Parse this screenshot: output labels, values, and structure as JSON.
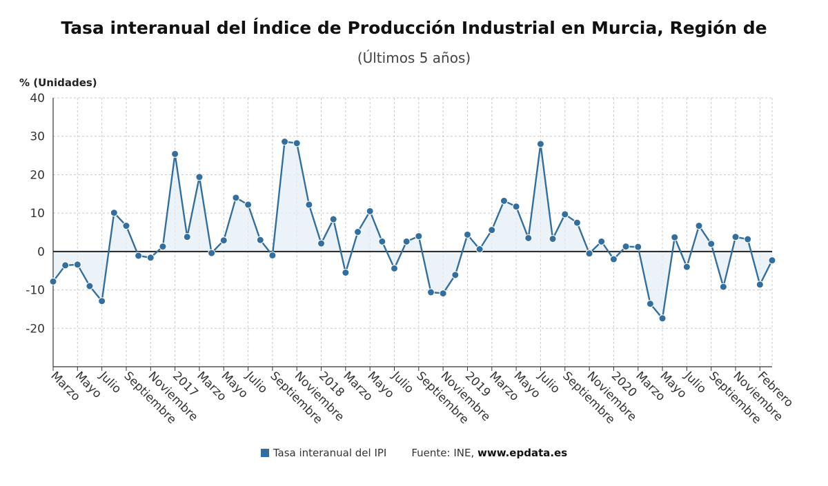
{
  "chart_data": {
    "type": "line",
    "title": "Tasa interanual del Índice de Producción Industrial en Murcia, Región de",
    "subtitle": "(Últimos 5 años)",
    "ylabel": "% (Unidades)",
    "ylim": [
      -30,
      40
    ],
    "yticks": [
      40,
      30,
      20,
      10,
      0,
      -10,
      -20
    ],
    "grid": true,
    "x_ticks": [
      "Marzo",
      "Mayo",
      "Julio",
      "Septiembre",
      "Noviembre",
      "2017",
      "Marzo",
      "Mayo",
      "Julio",
      "Septiembre",
      "Noviembre",
      "2018",
      "Marzo",
      "Mayo",
      "Julio",
      "Septiembre",
      "Noviembre",
      "2019",
      "Marzo",
      "Mayo",
      "Julio",
      "Septiembre",
      "Noviembre",
      "2020",
      "Marzo",
      "Mayo",
      "Julio",
      "Septiembre",
      "Noviembre",
      "Febrero"
    ],
    "series": [
      {
        "name": "Tasa interanual del IPI",
        "color": "#336f9e",
        "values": [
          -7.8,
          -3.6,
          -3.4,
          -9,
          -12.9,
          10.1,
          6.7,
          -1.1,
          -1.6,
          1.3,
          25.4,
          3.8,
          19.4,
          -0.4,
          2.9,
          14,
          12.2,
          3,
          -1,
          28.6,
          28.2,
          12.2,
          2.1,
          8.4,
          -5.5,
          5.1,
          10.5,
          2.6,
          -4.4,
          2.6,
          4,
          -10.6,
          -10.9,
          -6.1,
          4.4,
          0.6,
          5.6,
          13.2,
          11.7,
          3.5,
          28,
          3.3,
          9.7,
          7.5,
          -0.5,
          2.6,
          -2,
          1.3,
          1.2,
          -13.6,
          -17.4,
          3.7,
          -4,
          6.7,
          2,
          -9.2,
          3.8,
          3.2,
          -8.6,
          -2.3
        ]
      }
    ]
  },
  "legend": {
    "label": "Tasa interanual del IPI",
    "source_prefix": "Fuente: INE, ",
    "source_site": "www.epdata.es"
  }
}
